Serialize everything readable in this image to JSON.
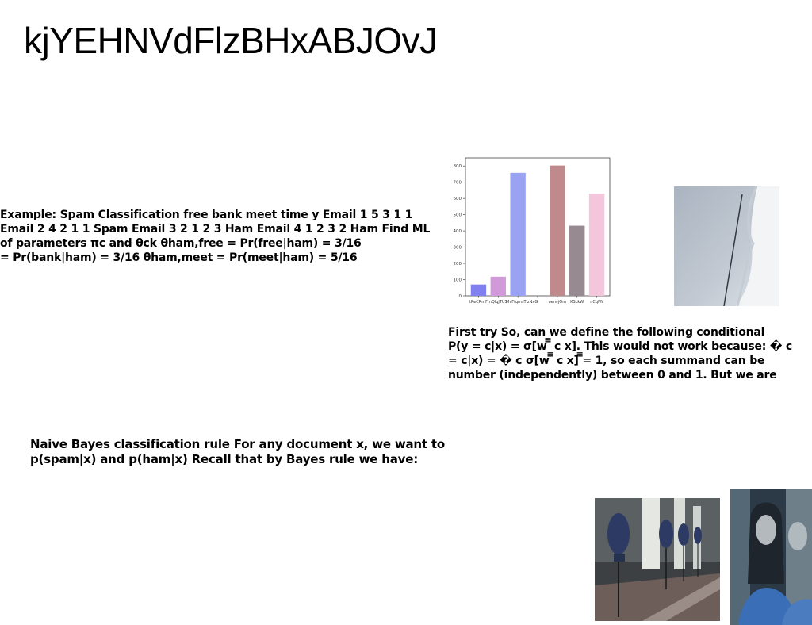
{
  "page_title": "kjYEHNVdFlzBHxABJOvJ",
  "text_blocks": {
    "example": [
      "Example: Spam Classification free bank meet time y Email 1 5 3 1 1",
      "Email 2 4 2 1 1 Spam Email 3 2 1 2 3 Ham Email 4 1 2 3 2 Ham Find ML",
      "of parameters πc and θck θham,free = Pr(free|ham) = 3/16",
      "= Pr(bank|ham) = 3/16 θham,meet = Pr(meet|ham) = 5/16"
    ],
    "first_try": [
      "First try So, can we define the following conditional",
      "P(y = c|x) = σ[w ̅̅̅ c x]. This would not work because: � c",
      "= c|x) = � c σ[w ̅̅̅ c x] ̅̅̅= 1, so each summand can be",
      "number (independently) between 0 and 1. But we are"
    ],
    "naive_bayes": [
      "Naive Bayes classification rule For any document x, we want to",
      "p(spam|x) and p(ham|x) Recall that by Bayes rule we have:"
    ]
  },
  "chart_data": {
    "type": "bar",
    "categories": [
      "tReCRmFm",
      "QlqjTUS",
      "MvFfqms",
      "TlzNxG",
      "oerwjOm",
      "KSLkW",
      "nCqPN"
    ],
    "values": [
      70,
      118,
      758,
      0,
      803,
      432,
      630
    ],
    "colors": [
      "#8080f0",
      "#d09ad8",
      "#9aa2f2",
      "#000000",
      "#c08a8c",
      "#978a90",
      "#f3c6dc"
    ],
    "xlim_labels_display": [
      "tReCRmFmQlqjTUS",
      "MvFfqmsTlzNxG",
      "oerwjOm",
      "KSLkW",
      "nCqPN"
    ],
    "yticks": [
      0,
      100,
      200,
      300,
      400,
      500,
      600,
      700,
      800
    ],
    "ylim": [
      0,
      850
    ],
    "title": "",
    "xlabel": "",
    "ylabel": ""
  },
  "images": {
    "window": "window-light-photo",
    "chairs": "chairs-corridor-photo",
    "woman": "woman-reflection-photo"
  }
}
